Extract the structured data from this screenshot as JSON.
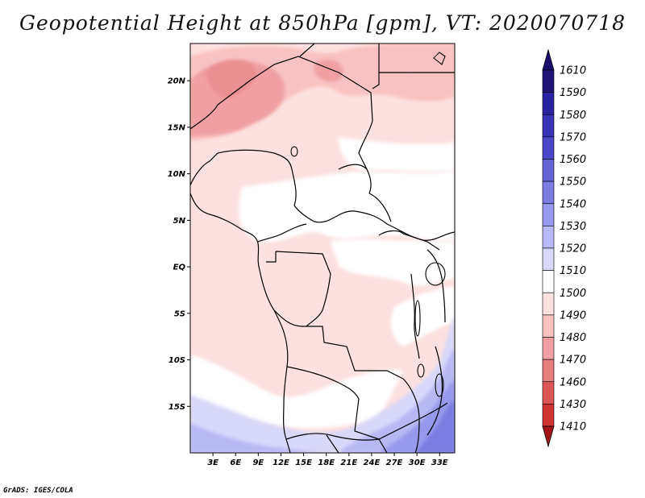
{
  "title": "Geopotential Height at 850hPa [gpm], VT: 2020070718",
  "credit": "GrADS: IGES/COLA",
  "map": {
    "region": "Central Africa",
    "lon_range": [
      0,
      35
    ],
    "lat_range": [
      -20,
      24
    ],
    "lat_ticks": [
      {
        "label": "20N",
        "value": 20
      },
      {
        "label": "15N",
        "value": 15
      },
      {
        "label": "10N",
        "value": 10
      },
      {
        "label": "5N",
        "value": 5
      },
      {
        "label": "EQ",
        "value": 0
      },
      {
        "label": "5S",
        "value": -5
      },
      {
        "label": "10S",
        "value": -10
      },
      {
        "label": "15S",
        "value": -15
      }
    ],
    "lon_ticks": [
      {
        "label": "3E",
        "value": 3
      },
      {
        "label": "6E",
        "value": 6
      },
      {
        "label": "9E",
        "value": 9
      },
      {
        "label": "12E",
        "value": 12
      },
      {
        "label": "15E",
        "value": 15
      },
      {
        "label": "18E",
        "value": 18
      },
      {
        "label": "21E",
        "value": 21
      },
      {
        "label": "24E",
        "value": 24
      },
      {
        "label": "27E",
        "value": 27
      },
      {
        "label": "30E",
        "value": 30
      },
      {
        "label": "33E",
        "value": 33
      }
    ]
  },
  "colorbar": {
    "levels": [
      {
        "label": "1610",
        "color": "#1e1478"
      },
      {
        "label": "1590",
        "color": "#2a22a0"
      },
      {
        "label": "1580",
        "color": "#3a32b4"
      },
      {
        "label": "1570",
        "color": "#4c46c8"
      },
      {
        "label": "1560",
        "color": "#6462d6"
      },
      {
        "label": "1550",
        "color": "#7c7ce2"
      },
      {
        "label": "1540",
        "color": "#9898ec"
      },
      {
        "label": "1530",
        "color": "#b8b8f4"
      },
      {
        "label": "1520",
        "color": "#d8d8fa"
      },
      {
        "label": "1510",
        "color": "#ffffff"
      },
      {
        "label": "1500",
        "color": "#fde0e0"
      },
      {
        "label": "1490",
        "color": "#f9c2c2"
      },
      {
        "label": "1480",
        "color": "#f0a0a0"
      },
      {
        "label": "1470",
        "color": "#e67e7e"
      },
      {
        "label": "1460",
        "color": "#dc5656"
      },
      {
        "label": "1430",
        "color": "#cc3434"
      },
      {
        "label": "1410",
        "color": "#b01e1e"
      }
    ],
    "top_color": "#1a0f6e",
    "bottom_color": "#a01818"
  }
}
